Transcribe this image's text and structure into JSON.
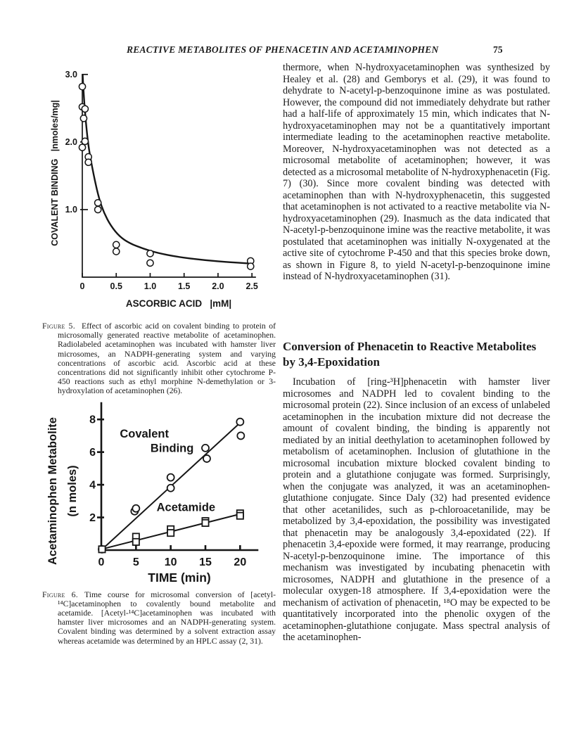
{
  "header": {
    "running_title": "REACTIVE METABOLITES OF PHENACETIN AND ACETAMINOPHEN",
    "page_number": "75"
  },
  "left_column": {
    "figure5_caption": {
      "label": "Figure 5.",
      "text": "Effect of ascorbic acid on covalent binding to protein of microsomally generated reactive metabolite of acetaminophen. Radiolabeled acetaminophen was incubated with hamster liver microsomes, an NADPH-generating system and varying concentrations of ascorbic acid. Ascorbic acid at these concentrations did not significantly inhibit other cytochrome P-450 reactions such as ethyl morphine N-demethylation or 3-hydroxylation of acetaminophen (26)."
    },
    "figure6_caption": {
      "label": "Figure 6.",
      "text": "Time course for microsomal conversion of [acetyl-¹⁴C]acetaminophen to covalently bound metabolite and acetamide. [Acetyl-¹⁴C]acetaminophen was incubated with hamster liver microsomes and an NADPH-generating system. Covalent binding was determined by a solvent extraction assay whereas acetamide was determined by an HPLC assay (2, 31)."
    }
  },
  "right_column": {
    "paragraph_continuation": "thermore, when N-hydroxyacetaminophen was synthesized by Healey et al. (28) and Gemborys et al. (29), it was found to dehydrate to N-acetyl-p-benzoquinone imine as was postulated. However, the compound did not immediately dehydrate but rather had a half-life of approximately 15 min, which indicates that N-hydroxyacetaminophen may not be a quantitatively important intermediate leading to the acetaminophen reactive metabolite. Moreover, N-hydroxyacetaminophen was not detected as a microsomal metabolite of acetaminophen; however, it was detected as a microsomal metabolite of N-hydroxyphenacetin (Fig. 7) (30). Since more covalent binding was detected with acetaminophen than with N-hydroxyphenacetin, this suggested that acetaminophen is not activated to a reactive metabolite via N-hydroxyacetaminophen (29). Inasmuch as the data indicated that N-acetyl-p-benzoquinone imine was the reactive metabolite, it was postulated that acetaminophen was initially N-oxygenated at the active site of cytochrome P-450 and that this species broke down, as shown in Figure 8, to yield N-acetyl-p-benzoquinone imine instead of N-hydroxyacetaminophen (31).",
    "section_heading": "Conversion of Phenacetin to Reactive Metabolites by 3,4-Epoxidation",
    "section_paragraph": "Incubation of [ring-³H]phenacetin with hamster liver microsomes and NADPH led to covalent binding to the microsomal protein (22). Since inclusion of an excess of unlabeled acetaminophen in the incubation mixture did not decrease the amount of covalent binding, the binding is apparently not mediated by an initial deethylation to acetaminophen followed by metabolism of acetaminophen. Inclusion of glutathione in the microsomal incubation mixture blocked covalent binding to protein and a glutathione conjugate was formed. Surprisingly, when the conjugate was analyzed, it was an acetaminophen-glutathione conjugate. Since Daly (32) had presented evidence that other acetanilides, such as p-chloroacetanilide, may be metabolized by 3,4-epoxidation, the possibility was investigated that phenacetin may be analogously 3,4-epoxidated (22). If phenacetin 3,4-epoxide were formed, it may rearrange, producing N-acetyl-p-benzoquinone imine. The importance of this mechanism was investigated by incubating phenacetin with microsomes, NADPH and glutathione in the presence of a molecular oxygen-18 atmosphere. If 3,4-epoxidation were the mechanism of activation of phenacetin, ¹⁸O may be expected to be quantitatively incorporated into the phenolic oxygen of the acetaminophen-glutathione conjugate. Mass spectral analysis of the acetaminophen-"
  },
  "chart_data": [
    {
      "id": "figure5",
      "type": "scatter",
      "title": "",
      "xlabel": "ASCORBIC ACID   |mM|",
      "ylabel": "COVALENT BINDING   |nmoles/mg|",
      "xlim": [
        0,
        2.55
      ],
      "ylim": [
        0,
        3.05
      ],
      "xticks": [
        0,
        0.5,
        1.0,
        1.5,
        2.0,
        2.5
      ],
      "xtick_labels": [
        "0",
        "0.5",
        "1.0",
        "1.5",
        "2.0",
        "2.5"
      ],
      "yticks": [
        1.0,
        2.0,
        3.0
      ],
      "ytick_labels": [
        "1.0",
        "2.0",
        "3.0"
      ],
      "grid": false,
      "legend": "none",
      "marker": "circle",
      "points": [
        [
          0,
          2.82
        ],
        [
          0,
          2.52
        ],
        [
          0.04,
          2.49
        ],
        [
          0.02,
          2.35
        ],
        [
          0.04,
          2.01
        ],
        [
          0,
          1.92
        ],
        [
          0.09,
          1.78
        ],
        [
          0.09,
          1.7
        ],
        [
          0.23,
          1.1
        ],
        [
          0.23,
          1.0
        ],
        [
          0.5,
          0.48
        ],
        [
          0.5,
          0.38
        ],
        [
          1.0,
          0.35
        ],
        [
          1.0,
          0.21
        ],
        [
          2.48,
          0.24
        ],
        [
          2.48,
          0.16
        ]
      ],
      "curve": [
        [
          0.005,
          3.0
        ],
        [
          0.02,
          2.7
        ],
        [
          0.05,
          2.32
        ],
        [
          0.08,
          2.02
        ],
        [
          0.12,
          1.76
        ],
        [
          0.18,
          1.45
        ],
        [
          0.25,
          1.15
        ],
        [
          0.32,
          0.95
        ],
        [
          0.42,
          0.76
        ],
        [
          0.55,
          0.6
        ],
        [
          0.7,
          0.5
        ],
        [
          0.9,
          0.42
        ],
        [
          1.1,
          0.36
        ],
        [
          1.4,
          0.3
        ],
        [
          1.8,
          0.25
        ],
        [
          2.2,
          0.22
        ],
        [
          2.5,
          0.2
        ]
      ]
    },
    {
      "id": "figure6",
      "type": "line",
      "title": "",
      "xlabel": "TIME (min)",
      "ylabel": "Acetaminophen Metabolite\n(n moles)",
      "xlim": [
        0,
        22.5
      ],
      "ylim": [
        0,
        9
      ],
      "xticks": [
        0,
        5,
        10,
        15,
        20
      ],
      "xtick_labels": [
        "0",
        "5",
        "10",
        "15",
        "20"
      ],
      "yticks": [
        2,
        4,
        6,
        8
      ],
      "ytick_labels": [
        "2",
        "4",
        "6",
        "8"
      ],
      "grid": false,
      "legend": "inline-annotations",
      "series": [
        {
          "name": "Covalent Binding",
          "marker": "circle",
          "points": [
            [
              0.1,
              0.05
            ],
            [
              4.8,
              2.38
            ],
            [
              5,
              2.55
            ],
            [
              10,
              4.45
            ],
            [
              10,
              3.8
            ],
            [
              15,
              6.25
            ],
            [
              15.2,
              5.6
            ],
            [
              20,
              7.85
            ],
            [
              20.1,
              7.0
            ]
          ],
          "trend": [
            [
              0,
              0
            ],
            [
              20.4,
              7.95
            ]
          ]
        },
        {
          "name": "Acetamide",
          "marker": "square",
          "points": [
            [
              0.1,
              0.05
            ],
            [
              5,
              0.82
            ],
            [
              5,
              0.5
            ],
            [
              10,
              1.28
            ],
            [
              10,
              1.05
            ],
            [
              15,
              1.78
            ],
            [
              15,
              1.66
            ],
            [
              20,
              2.25
            ],
            [
              20,
              2.1
            ]
          ],
          "trend": [
            [
              0,
              0.05
            ],
            [
              20.4,
              2.25
            ]
          ]
        }
      ],
      "annotations": [
        {
          "text": "Covalent",
          "x": 6.2,
          "y": 6.9
        },
        {
          "text": "Binding",
          "x": 10.2,
          "y": 6.0
        },
        {
          "text": "Acetamide",
          "x": 12.2,
          "y": 2.4
        }
      ]
    }
  ]
}
